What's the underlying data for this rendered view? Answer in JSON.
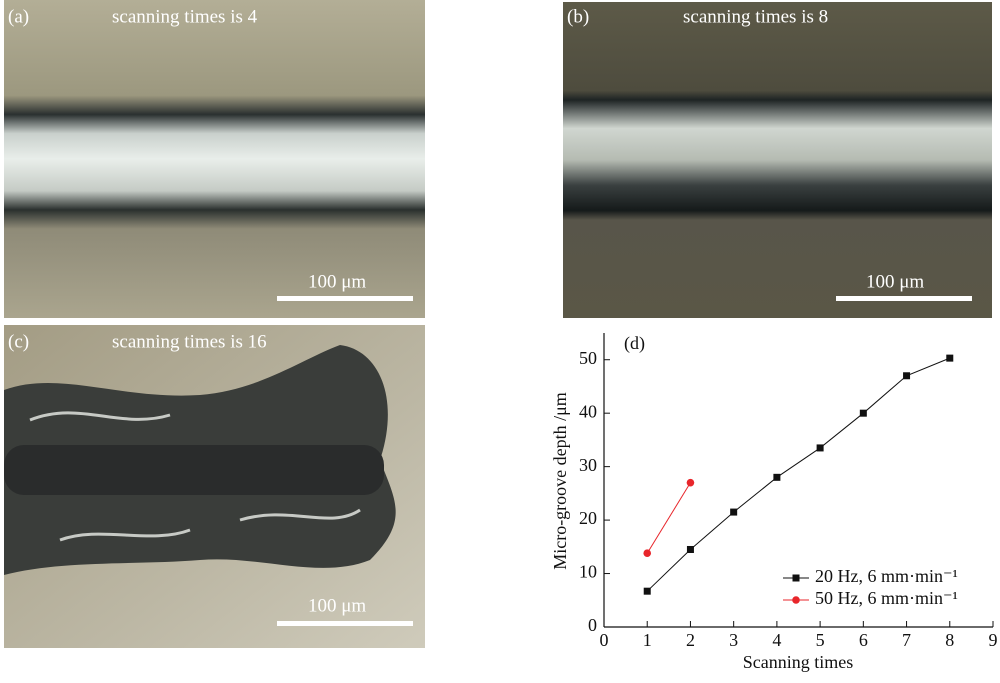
{
  "panels": [
    {
      "label": "(a)",
      "caption": "scanning times is 4",
      "scale": "100 μm"
    },
    {
      "label": "(b)",
      "caption": "scanning times is 8",
      "scale": "100 μm"
    },
    {
      "label": "(c)",
      "caption": "scanning times is 16",
      "scale": "100 μm"
    }
  ],
  "chart_data": {
    "type": "line",
    "panel_label": "(d)",
    "x_label": "Scanning times",
    "y_label": "Micro-groove depth /μm",
    "xlim": [
      0,
      9
    ],
    "xticks": [
      0,
      1,
      2,
      3,
      4,
      5,
      6,
      7,
      8,
      9
    ],
    "ylim": [
      0,
      55
    ],
    "yticks": [
      0,
      10,
      20,
      30,
      40,
      50
    ],
    "legend": "lower right",
    "series": [
      {
        "name": "20 Hz, 6 mm·min⁻¹",
        "color": "#111111",
        "marker": "square",
        "x": [
          1,
          2,
          3,
          4,
          5,
          6,
          7,
          8
        ],
        "values": [
          6.7,
          14.5,
          21.5,
          28,
          33.5,
          40,
          47,
          50.3
        ]
      },
      {
        "name": "50 Hz, 6 mm·min⁻¹",
        "color": "#e8262b",
        "marker": "circle",
        "x": [
          1,
          2
        ],
        "values": [
          13.8,
          27
        ]
      }
    ]
  }
}
